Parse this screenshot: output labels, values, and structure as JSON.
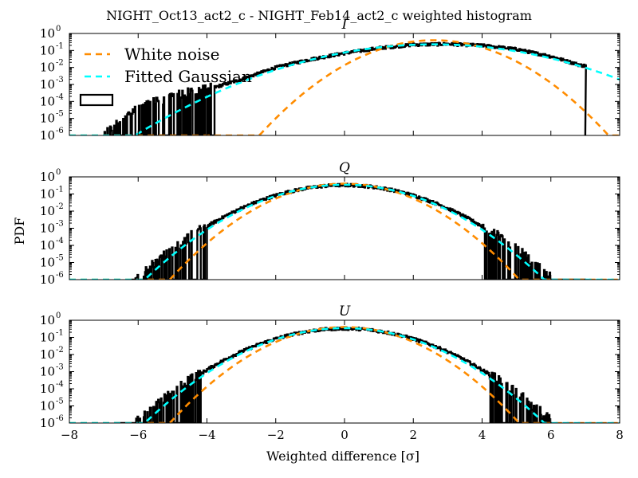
{
  "figure": {
    "suptitle": "NIGHT_Oct13_act2_c - NIGHT_Feb14_act2_c weighted histogram",
    "ylabel": "PDF",
    "xlabel": "Weighted difference [σ]"
  },
  "colors": {
    "histogram": "#000000",
    "white_noise": "#ff8c00",
    "fitted_gaussian": "#00ffff"
  },
  "chart_data": [
    {
      "type": "line",
      "title": "I",
      "yscale": "log",
      "xlim": [
        -8,
        8
      ],
      "ylim": [
        1e-06,
        1
      ],
      "x_ticks": [
        "−8",
        "−6",
        "−4",
        "−2",
        "0",
        "2",
        "4",
        "6",
        "8"
      ],
      "y_ticks": [
        "10^0",
        "10^-1",
        "10^-2",
        "10^-3",
        "10^-4",
        "10^-5",
        "10^-6"
      ],
      "legend": {
        "placement": "upper-left",
        "entries": [
          "White noise",
          "Fitted Gaussian"
        ]
      },
      "series": [
        {
          "name": "White noise",
          "style": "dashed",
          "mean": 2.6,
          "sigma": 1.0
        },
        {
          "name": "Fitted Gaussian",
          "style": "dashed",
          "mean": 2.6,
          "sigma": 1.75
        },
        {
          "name": "",
          "style": "histogram",
          "points": [
            [
              -7.0,
              1e-06
            ],
            [
              -6.0,
              4e-05
            ],
            [
              -5.0,
              0.0002
            ],
            [
              -4.0,
              0.0005
            ],
            [
              -3.0,
              0.002
            ],
            [
              -2.0,
              0.01
            ],
            [
              -1.0,
              0.03
            ],
            [
              0.0,
              0.07
            ],
            [
              1.0,
              0.14
            ],
            [
              2.0,
              0.22
            ],
            [
              3.0,
              0.24
            ],
            [
              4.0,
              0.2
            ],
            [
              5.0,
              0.12
            ],
            [
              6.0,
              0.045
            ],
            [
              6.9,
              0.013
            ]
          ],
          "x_min": -7.0,
          "x_max": 7.0,
          "sparse_below": -3.8
        }
      ]
    },
    {
      "type": "line",
      "title": "Q",
      "yscale": "log",
      "xlim": [
        -8,
        8
      ],
      "ylim": [
        1e-06,
        1
      ],
      "x_ticks": [
        "−8",
        "−6",
        "−4",
        "−2",
        "0",
        "2",
        "4",
        "6",
        "8"
      ],
      "y_ticks": [
        "10^0",
        "10^-1",
        "10^-2",
        "10^-3",
        "10^-4",
        "10^-5",
        "10^-6"
      ],
      "series": [
        {
          "name": "White noise",
          "style": "dashed",
          "mean": 0.0,
          "sigma": 1.0
        },
        {
          "name": "Fitted Gaussian",
          "style": "dashed",
          "mean": 0.0,
          "sigma": 1.15
        },
        {
          "name": "",
          "style": "histogram",
          "mean": 0.0,
          "sigma": 1.2,
          "x_min": -6.2,
          "x_max": 7.0,
          "sparse_left": -4.0,
          "sparse_right": 4.0
        }
      ]
    },
    {
      "type": "line",
      "title": "U",
      "yscale": "log",
      "xlim": [
        -8,
        8
      ],
      "ylim": [
        1e-06,
        1
      ],
      "x_ticks": [
        "−8",
        "−6",
        "−4",
        "−2",
        "0",
        "2",
        "4",
        "6",
        "8"
      ],
      "y_ticks": [
        "10^0",
        "10^-1",
        "10^-2",
        "10^-3",
        "10^-4",
        "10^-5",
        "10^-6"
      ],
      "series": [
        {
          "name": "White noise",
          "style": "dashed",
          "mean": 0.0,
          "sigma": 1.0
        },
        {
          "name": "Fitted Gaussian",
          "style": "dashed",
          "mean": 0.0,
          "sigma": 1.15
        },
        {
          "name": "",
          "style": "histogram",
          "mean": 0.0,
          "sigma": 1.2,
          "x_min": -6.7,
          "x_max": 6.0,
          "sparse_left": -4.2,
          "sparse_right": 4.2
        }
      ]
    }
  ]
}
